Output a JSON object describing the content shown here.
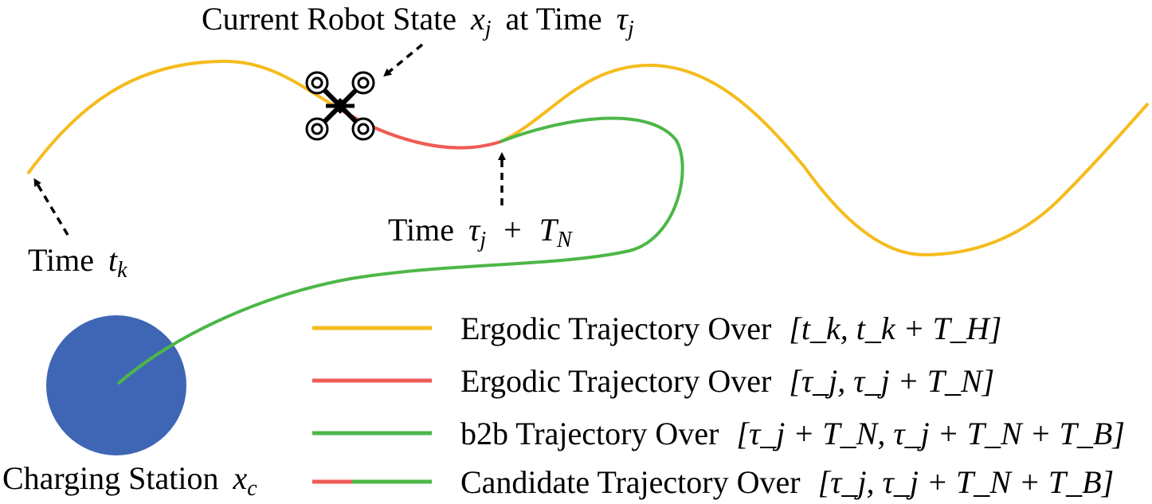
{
  "labels": {
    "current_state_prefix": "Current Robot State",
    "current_state_var": "x",
    "current_state_sub": "j",
    "current_state_mid": "at Time",
    "current_state_time_var": "τ",
    "current_state_time_sub": "j",
    "time_tk_prefix": "Time",
    "time_tk_var": "t",
    "time_tk_sub": "k",
    "time_tau_prefix": "Time",
    "time_tau_var": "τ",
    "time_tau_sub": "j",
    "time_tau_plus": "+",
    "time_tau_T": "T",
    "time_tau_Tsub": "N",
    "charging_prefix": "Charging Station",
    "charging_var": "x",
    "charging_sub": "c"
  },
  "legend": [
    {
      "text": "Ergodic Trajectory Over",
      "math": "[t_k, t_k + T_H]",
      "colors": [
        "#F5BC1E"
      ]
    },
    {
      "text": "Ergodic Trajectory Over",
      "math": "[τ_j, τ_j + T_N]",
      "colors": [
        "#EF5B58"
      ]
    },
    {
      "text": "b2b Trajectory Over",
      "math": "[τ_j + T_N, τ_j + T_N + T_B]",
      "colors": [
        "#4CB748"
      ]
    },
    {
      "text": "Candidate Trajectory Over",
      "math": "[τ_j, τ_j + T_N + T_B]",
      "colors": [
        "#EF5B58",
        "#4CB748"
      ]
    }
  ],
  "colors": {
    "ergodic": "#F5BC1E",
    "segment": "#EF5B58",
    "b2b": "#4CB748",
    "station": "#3F66B4"
  }
}
